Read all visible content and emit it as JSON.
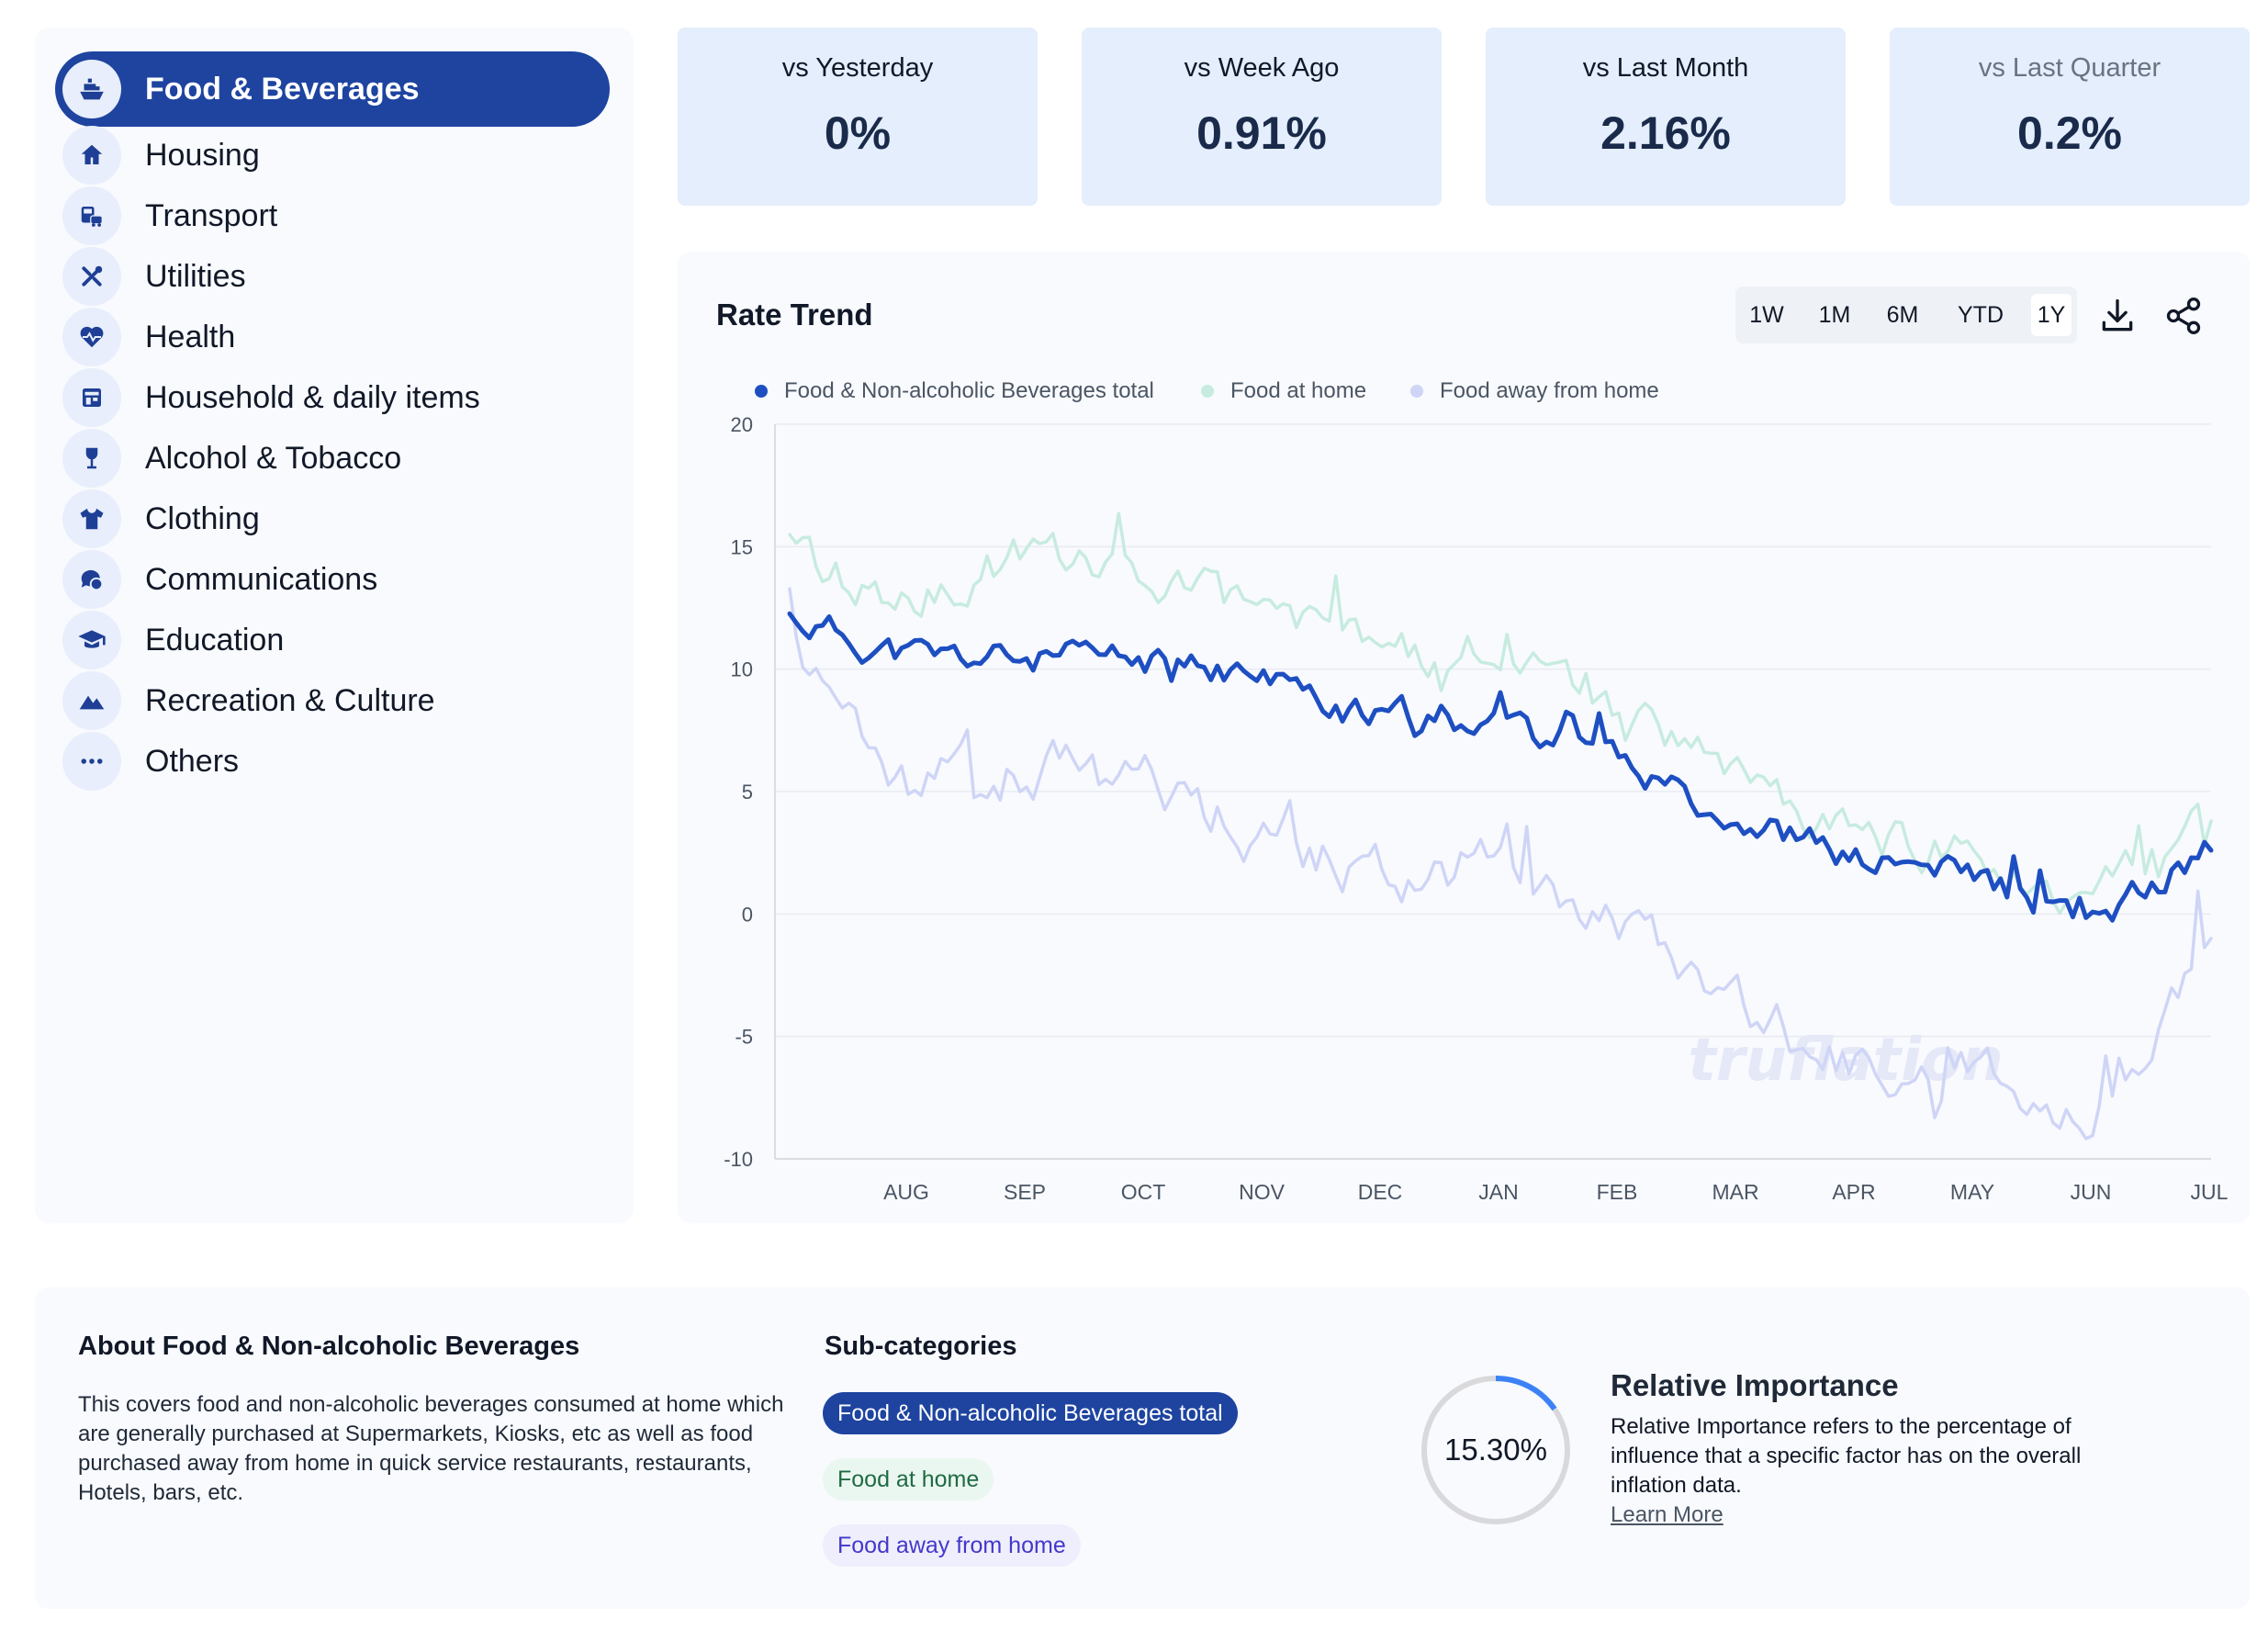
{
  "sidebar": {
    "items": [
      {
        "label": "Food & Beverages",
        "icon": "ship-icon",
        "active": true
      },
      {
        "label": "Housing",
        "icon": "home-icon"
      },
      {
        "label": "Transport",
        "icon": "transport-icon"
      },
      {
        "label": "Utilities",
        "icon": "tools-icon"
      },
      {
        "label": "Health",
        "icon": "heart-pulse-icon"
      },
      {
        "label": "Household & daily items",
        "icon": "store-icon"
      },
      {
        "label": "Alcohol & Tobacco",
        "icon": "wine-glass-icon"
      },
      {
        "label": "Clothing",
        "icon": "shirt-icon"
      },
      {
        "label": "Communications",
        "icon": "chat-bubbles-icon"
      },
      {
        "label": "Education",
        "icon": "graduation-cap-icon"
      },
      {
        "label": "Recreation & Culture",
        "icon": "mountains-icon"
      },
      {
        "label": "Others",
        "icon": "more-dots-icon"
      }
    ]
  },
  "stats": [
    {
      "title": "vs Yesterday",
      "value": "0%"
    },
    {
      "title": "vs Week Ago",
      "value": "0.91%"
    },
    {
      "title": "vs Last Month",
      "value": "2.16%"
    },
    {
      "title": "vs Last Quarter",
      "value": "0.2%"
    }
  ],
  "chart_panel": {
    "title": "Rate Trend",
    "ranges": [
      "1W",
      "1M",
      "6M",
      "YTD",
      "1Y"
    ],
    "selected_range": "1Y",
    "watermark": "truflation"
  },
  "chart_data": {
    "type": "line",
    "title": "Rate Trend",
    "xlabel": "",
    "ylabel": "",
    "ylim": [
      -10,
      20
    ],
    "yticks": [
      20,
      15,
      10,
      5,
      0,
      -5,
      -10
    ],
    "x_ticks": [
      "AUG",
      "SEP",
      "OCT",
      "NOV",
      "DEC",
      "JAN",
      "FEB",
      "MAR",
      "APR",
      "MAY",
      "JUN",
      "JUL"
    ],
    "x": [
      "Jul",
      "Aug",
      "Sep",
      "Oct",
      "Nov",
      "Dec",
      "Jan",
      "Feb",
      "Mar",
      "Apr",
      "May",
      "Jun",
      "Jul"
    ],
    "grid": true,
    "legend": "top-left",
    "series": [
      {
        "name": "Food & Non-alcoholic Beverages total",
        "color": "#1e4fc2",
        "values": [
          12.1,
          10.5,
          10.4,
          10.3,
          9.7,
          7.9,
          8.3,
          6.5,
          4.0,
          2.2,
          1.6,
          -0.4,
          2.6
        ]
      },
      {
        "name": "Food at home",
        "color": "#c7ebdf",
        "values": [
          14.7,
          12.7,
          14.8,
          13.3,
          13.0,
          10.5,
          11.0,
          8.4,
          5.8,
          3.0,
          2.5,
          0.5,
          3.8
        ]
      },
      {
        "name": "Food away from home",
        "color": "#cfd5f6",
        "values": [
          11.5,
          5.2,
          6.0,
          5.5,
          3.3,
          1.4,
          2.3,
          -0.6,
          -3.3,
          -6.5,
          -6.0,
          -8.2,
          -1.0
        ]
      }
    ]
  },
  "about": {
    "title": "About Food & Non-alcoholic Beverages",
    "text": "This covers food and non-alcoholic beverages consumed at home which are generally purchased at Supermarkets, Kiosks, etc as well as food purchased away from home in quick service restaurants, restaurants, Hotels, bars, etc."
  },
  "subcategories": {
    "title": "Sub-categories",
    "items": [
      "Food & Non-alcoholic Beverages total",
      "Food at home",
      "Food away from home"
    ]
  },
  "relative_importance": {
    "value": "15.30%",
    "fraction": 0.153,
    "title": "Relative Importance",
    "text": "Relative Importance refers to the percentage of influence that a specific factor has on the overall inflation data.",
    "link": "Learn More"
  }
}
